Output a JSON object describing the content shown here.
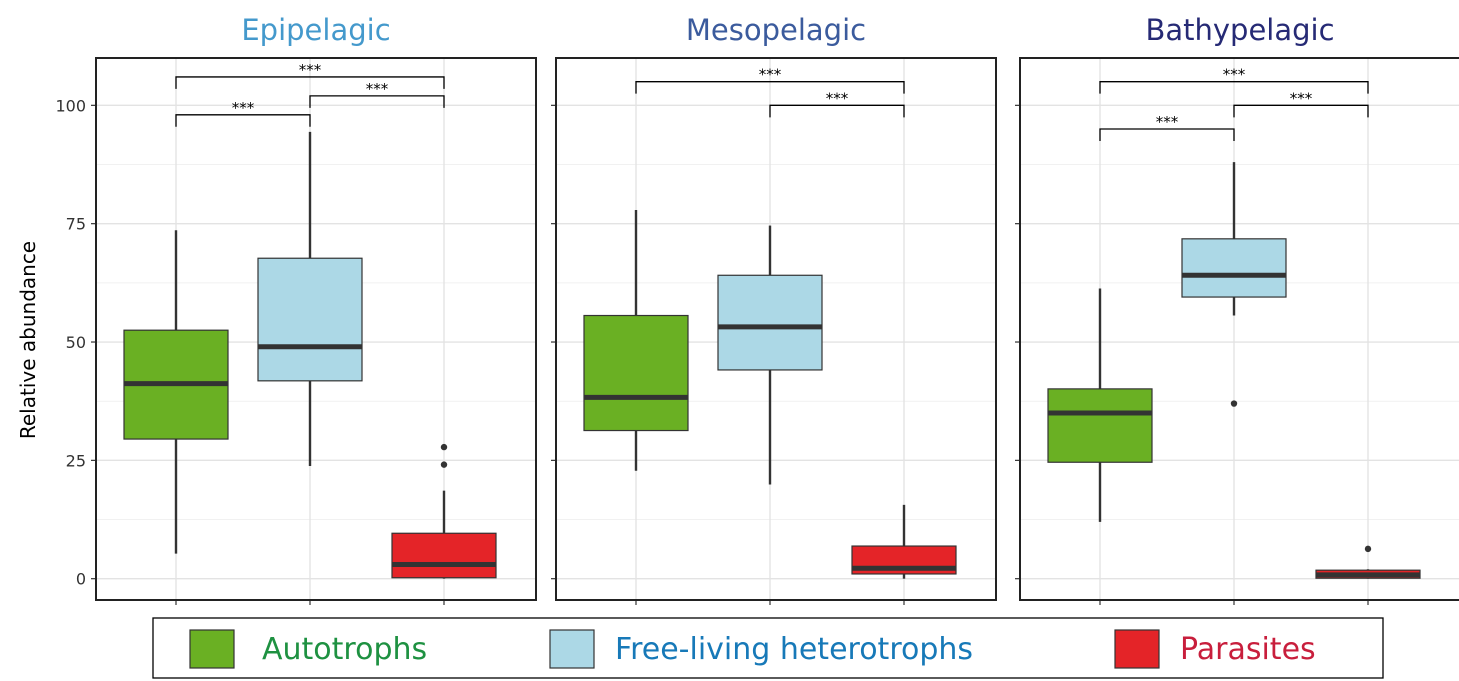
{
  "chart_data": {
    "type": "boxplot",
    "ylabel": "Relative abundance",
    "ylim": [
      -4.5,
      110
    ],
    "yticks": [
      0,
      25,
      50,
      75,
      100
    ],
    "grid": true,
    "legend_position": "bottom",
    "categories": [
      "Autotrophs",
      "Free-living heterotrophs",
      "Parasites"
    ],
    "category_colors": [
      "#6ab023",
      "#acd8e6",
      "#e42428"
    ],
    "legend_text_colors": [
      "#1e9141",
      "#1779b8",
      "#c81e3c"
    ],
    "significance_label": "***",
    "panels": [
      {
        "title": "Epipelagic",
        "title_color": "#4499cc",
        "boxes": [
          {
            "category": "Autotrophs",
            "q1": 29.5,
            "median": 41.2,
            "q3": 52.5,
            "whisker_low": 5.3,
            "whisker_high": 73.6,
            "outliers": []
          },
          {
            "category": "Free-living heterotrophs",
            "q1": 41.8,
            "median": 49.0,
            "q3": 67.7,
            "whisker_low": 23.8,
            "whisker_high": 94.4,
            "outliers": []
          },
          {
            "category": "Parasites",
            "q1": 0.2,
            "median": 3.0,
            "q3": 9.6,
            "whisker_low": 0.0,
            "whisker_high": 18.6,
            "outliers": [
              24.1,
              27.8
            ]
          }
        ],
        "comparisons": [
          {
            "from": 0,
            "to": 2,
            "label": "***",
            "y": 106
          },
          {
            "from": 0,
            "to": 1,
            "label": "***",
            "y": 98
          },
          {
            "from": 1,
            "to": 2,
            "label": "***",
            "y": 102
          }
        ]
      },
      {
        "title": "Mesopelagic",
        "title_color": "#3b5b9d",
        "boxes": [
          {
            "category": "Autotrophs",
            "q1": 31.3,
            "median": 38.3,
            "q3": 55.6,
            "whisker_low": 22.8,
            "whisker_high": 77.9,
            "outliers": []
          },
          {
            "category": "Free-living heterotrophs",
            "q1": 44.1,
            "median": 53.2,
            "q3": 64.1,
            "whisker_low": 19.9,
            "whisker_high": 74.6,
            "outliers": []
          },
          {
            "category": "Parasites",
            "q1": 1.0,
            "median": 2.2,
            "q3": 6.9,
            "whisker_low": 0.0,
            "whisker_high": 15.6,
            "outliers": []
          }
        ],
        "comparisons": [
          {
            "from": 0,
            "to": 2,
            "label": "***",
            "y": 105
          },
          {
            "from": 1,
            "to": 2,
            "label": "***",
            "y": 100
          }
        ]
      },
      {
        "title": "Bathypelagic",
        "title_color": "#262a75",
        "boxes": [
          {
            "category": "Autotrophs",
            "q1": 24.6,
            "median": 35.0,
            "q3": 40.1,
            "whisker_low": 12.0,
            "whisker_high": 61.3,
            "outliers": []
          },
          {
            "category": "Free-living heterotrophs",
            "q1": 59.5,
            "median": 64.1,
            "q3": 71.8,
            "whisker_low": 55.6,
            "whisker_high": 88.0,
            "outliers": [
              37.0
            ]
          },
          {
            "category": "Parasites",
            "q1": 0.1,
            "median": 0.8,
            "q3": 1.8,
            "whisker_low": 0.0,
            "whisker_high": 2.0,
            "outliers": [
              6.3
            ]
          }
        ],
        "comparisons": [
          {
            "from": 0,
            "to": 2,
            "label": "***",
            "y": 105
          },
          {
            "from": 0,
            "to": 1,
            "label": "***",
            "y": 95
          },
          {
            "from": 1,
            "to": 2,
            "label": "***",
            "y": 100
          }
        ]
      }
    ]
  }
}
